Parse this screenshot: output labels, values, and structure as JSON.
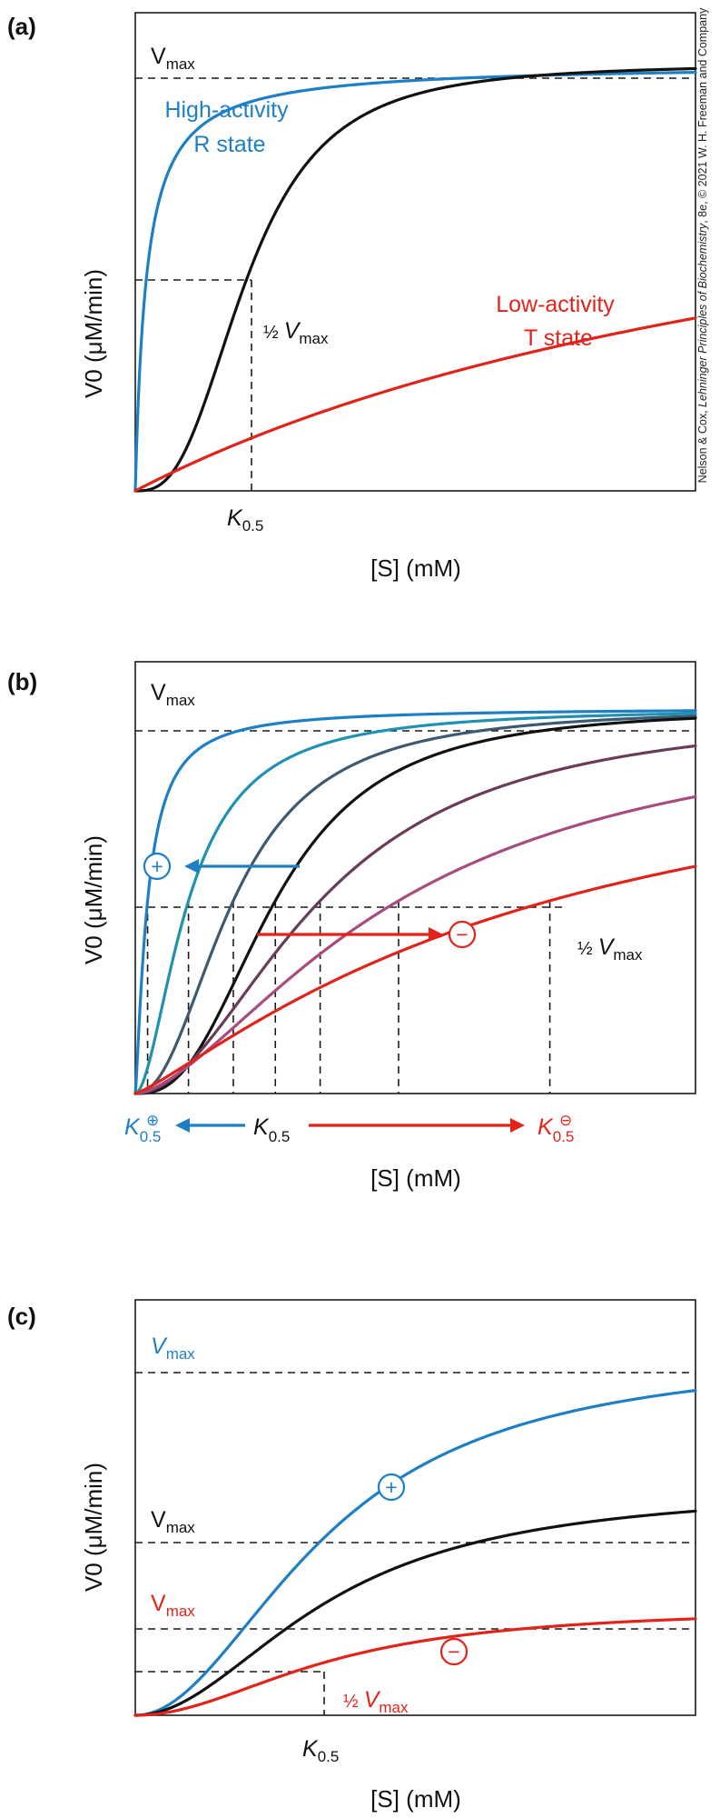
{
  "credit": {
    "prefix": "Nelson & Cox, ",
    "title": "Lehninger Principles of Biochemistry",
    "suffix": ", 8e, © 2021 W. H. Freeman and Company"
  },
  "colors": {
    "blue": "#1f7fc4",
    "black": "#111111",
    "red": "#e2231a",
    "teal": "#2191b3",
    "slate": "#3d5a70",
    "plum": "#6b3c58",
    "mauve": "#a64d7e"
  },
  "chart_data": [
    {
      "panel": "(a)",
      "type": "line",
      "xlabel": "[S] (mM)",
      "ylabel": "V0 (μM/min)",
      "vmax_label": {
        "main": "V",
        "sub": "max"
      },
      "half_vmax_label": {
        "frac": "½",
        "main": "V",
        "sub": "max"
      },
      "k_label": {
        "main": "K",
        "sub": "0.5"
      },
      "xlim": [
        0,
        10
      ],
      "ylim": [
        0,
        1.12
      ],
      "vmax": 1.0,
      "k05": 2.0,
      "series": [
        {
          "label": [
            "High-activity",
            "R state"
          ],
          "color": "#1f7fc4",
          "vmax": 1.0,
          "k": 0.2,
          "n": 1
        },
        {
          "color": "#111111",
          "vmax": 1.0,
          "k": 2.0,
          "n": 2.8
        },
        {
          "label": [
            "Low-activity",
            "T state"
          ],
          "color": "#e2231a",
          "vmax": 1.0,
          "k": 14.7,
          "n": 1
        }
      ]
    },
    {
      "panel": "(b)",
      "type": "line",
      "xlabel": "[S] (mM)",
      "ylabel": "V0 (μM/min)",
      "vmax_label": {
        "main": "V",
        "sub": "max"
      },
      "half_vmax_label": {
        "frac": "½",
        "main": "V",
        "sub": "max"
      },
      "k_label": {
        "main": "K",
        "sub": "0.5"
      },
      "k_plus_label": {
        "main": "K",
        "sub": "0.5",
        "sup": "⊕"
      },
      "k_minus_label": {
        "main": "K",
        "sub": "0.5",
        "sup": "⊖"
      },
      "activator_symbol": "+",
      "inhibitor_symbol": "−",
      "xlim": [
        0,
        10
      ],
      "ylim": [
        0,
        1.12
      ],
      "vmax": 1.0,
      "series": [
        {
          "color": "#1f7fc4",
          "vmax": 1.0,
          "k": 0.22,
          "n": 1.3
        },
        {
          "color": "#2191b3",
          "vmax": 1.0,
          "k": 0.95,
          "n": 1.8
        },
        {
          "color": "#3d5a70",
          "vmax": 1.0,
          "k": 1.75,
          "n": 2.2
        },
        {
          "color": "#111111",
          "vmax": 1.0,
          "k": 2.5,
          "n": 2.6
        },
        {
          "color": "#6b3c58",
          "vmax": 1.0,
          "k": 3.3,
          "n": 2.0
        },
        {
          "color": "#a64d7e",
          "vmax": 1.0,
          "k": 4.7,
          "n": 1.6
        },
        {
          "color": "#e2231a",
          "vmax": 1.0,
          "k": 7.4,
          "n": 1.2
        }
      ]
    },
    {
      "panel": "(c)",
      "type": "line",
      "xlabel": "[S] (mM)",
      "ylabel": "V0 (μM/min)",
      "vmax_label": {
        "main": "V",
        "sub": "max"
      },
      "half_vmax_label": {
        "frac": "½",
        "main": "V",
        "sub": "max"
      },
      "k_label": {
        "main": "K",
        "sub": "0.5"
      },
      "activator_symbol": "+",
      "inhibitor_symbol": "−",
      "xlim": [
        0,
        10
      ],
      "ylim": [
        0,
        1.0
      ],
      "k05": 3.45,
      "series": [
        {
          "color": "#1f7fc4",
          "vmax": 0.875,
          "k": 3.45,
          "n": 2.0
        },
        {
          "color": "#111111",
          "vmax": 0.55,
          "k": 3.45,
          "n": 2.0
        },
        {
          "color": "#e2231a",
          "vmax": 0.26,
          "k": 3.45,
          "n": 2.0
        }
      ]
    }
  ]
}
